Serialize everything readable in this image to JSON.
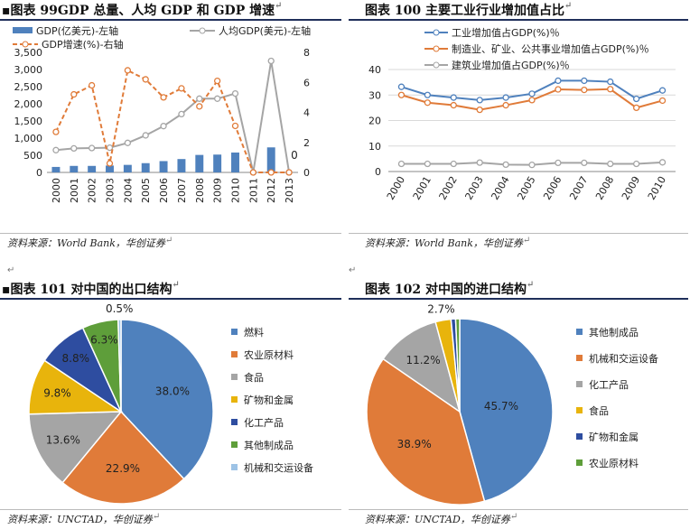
{
  "colors": {
    "blue": "#4f81bd",
    "orange": "#e07b39",
    "gray": "#a5a5a5",
    "gold": "#e8b40c",
    "navy": "#2e4da0",
    "green": "#5e9e3a",
    "lightblue": "#9dc3e6",
    "axis": "#888888",
    "grid": "#d9d9d9"
  },
  "bullet": "▪",
  "return_mark": "↵",
  "chart_data": [
    {
      "id": "c99",
      "type": "bar",
      "title": "图表 99GDP 总量、人均 GDP 和 GDP 增速",
      "source": "资料来源：World Bank，华创证券",
      "categories": [
        "2000",
        "2001",
        "2002",
        "2003",
        "2004",
        "2005",
        "2006",
        "2007",
        "2008",
        "2009",
        "2010",
        "2011",
        "2012",
        "2013"
      ],
      "ylim": [
        0,
        3500
      ],
      "yticks": [
        0,
        500,
        1000,
        1500,
        2000,
        2500,
        3000,
        3500
      ],
      "y2lim": [
        0,
        8
      ],
      "y2ticks": [
        0,
        2,
        4,
        6,
        8
      ],
      "legend_position": "top",
      "series": [
        {
          "name": "GDP(亿美元)-左轴",
          "kind": "bar",
          "axis": "left",
          "values": [
            160,
            190,
            190,
            200,
            220,
            270,
            330,
            390,
            510,
            520,
            580,
            0,
            730,
            0
          ]
        },
        {
          "name": "人均GDP(美元)-左轴",
          "kind": "line",
          "axis": "left",
          "values": [
            650,
            700,
            710,
            720,
            860,
            1080,
            1350,
            1700,
            2150,
            2150,
            2300,
            0,
            3250,
            0
          ]
        },
        {
          "name": "GDP增速(%)-右轴",
          "kind": "dashed-line",
          "axis": "right",
          "values": [
            2.7,
            5.2,
            5.8,
            0.6,
            6.8,
            6.2,
            5.0,
            5.6,
            4.4,
            6.1,
            3.1,
            0,
            0,
            0
          ]
        }
      ],
      "annotations": [
        {
          "text": "0",
          "category": "2013",
          "axis": "right",
          "value": 0.9
        }
      ]
    },
    {
      "id": "c100",
      "type": "line",
      "title": "图表 100 主要工业行业增加值占比",
      "source": "资料来源：World Bank，华创证券",
      "categories": [
        "2000",
        "2001",
        "2002",
        "2003",
        "2004",
        "2005",
        "2006",
        "2007",
        "2008",
        "2009",
        "2010"
      ],
      "ylim": [
        0,
        40
      ],
      "yticks": [
        0,
        10,
        20,
        30,
        40
      ],
      "grid": true,
      "legend_position": "top",
      "series": [
        {
          "name": "工业增加值占GDP(%)％",
          "values": [
            33.2,
            30.0,
            29.0,
            28.0,
            29.0,
            30.5,
            35.6,
            35.6,
            35.2,
            28.5,
            31.8
          ]
        },
        {
          "name": "制造业、矿业、公共事业增加值占GDP(%)％",
          "values": [
            30.0,
            27.0,
            26.0,
            24.2,
            26.0,
            28.0,
            32.2,
            32.0,
            32.3,
            25.0,
            27.8
          ]
        },
        {
          "name": "建筑业增加值占GDP(%)％",
          "values": [
            3.0,
            3.0,
            3.0,
            3.5,
            2.7,
            2.6,
            3.4,
            3.4,
            3.0,
            3.0,
            3.6
          ]
        }
      ]
    },
    {
      "id": "c101",
      "type": "pie",
      "title": "图表 101 对中国的出口结构",
      "source": "资料来源：UNCTAD，华创证券",
      "legend_position": "right",
      "slices": [
        {
          "label": "燃料",
          "value": 38.0,
          "text": "38.0%"
        },
        {
          "label": "农业原材料",
          "value": 22.9,
          "text": "22.9%"
        },
        {
          "label": "食品",
          "value": 13.6,
          "text": "13.6%"
        },
        {
          "label": "矿物和金属",
          "value": 9.8,
          "text": "9.8%"
        },
        {
          "label": "化工产品",
          "value": 8.8,
          "text": "8.8%"
        },
        {
          "label": "其他制成品",
          "value": 6.3,
          "text": "6.3%"
        },
        {
          "label": "机械和交运设备",
          "value": 0.5,
          "text": "0.5%"
        }
      ]
    },
    {
      "id": "c102",
      "type": "pie",
      "title": "图表 102 对中国的进口结构",
      "source": "资料来源：UNCTAD，华创证券",
      "legend_position": "right",
      "slices": [
        {
          "label": "其他制成品",
          "value": 45.7,
          "text": "45.7%"
        },
        {
          "label": "机械和交运设备",
          "value": 38.9,
          "text": "38.9%"
        },
        {
          "label": "化工产品",
          "value": 11.2,
          "text": "11.2%"
        },
        {
          "label": "食品",
          "value": 2.7,
          "text": "2.7%"
        },
        {
          "label": "矿物和金属",
          "value": 0.8,
          "text": ""
        },
        {
          "label": "农业原材料",
          "value": 0.7,
          "text": ""
        }
      ]
    }
  ]
}
